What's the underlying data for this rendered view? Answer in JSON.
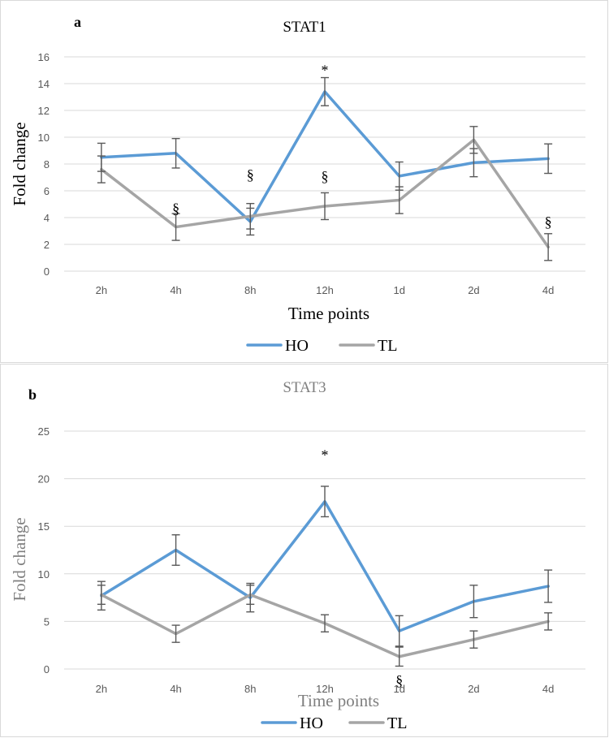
{
  "chart_data": [
    {
      "type": "line",
      "panel": "a",
      "title": "STAT1",
      "xlabel": "Time points",
      "ylabel": "Fold change",
      "categories": [
        "2h",
        "4h",
        "8h",
        "12h",
        "1d",
        "2d",
        "4d"
      ],
      "ylim": [
        0,
        16
      ],
      "yticks": [
        0,
        2,
        4,
        6,
        8,
        10,
        12,
        14,
        16
      ],
      "grid": true,
      "legend_position": "bottom",
      "series": [
        {
          "name": "HO",
          "color": "#5b9bd5",
          "values": [
            8.5,
            8.8,
            3.7,
            13.4,
            7.1,
            8.1,
            8.4
          ],
          "errors": [
            1.05,
            1.1,
            1.0,
            1.05,
            1.05,
            1.05,
            1.1
          ]
        },
        {
          "name": "TL",
          "color": "#a5a5a5",
          "values": [
            7.6,
            3.3,
            4.1,
            4.85,
            5.3,
            9.8,
            1.8
          ],
          "errors": [
            1.0,
            1.0,
            0.95,
            1.0,
            1.0,
            1.0,
            1.0
          ]
        }
      ],
      "annotations": [
        {
          "text": "*",
          "category": "12h",
          "y": 15.0
        },
        {
          "text": "§",
          "category": "4h",
          "y": 4.7
        },
        {
          "text": "§",
          "category": "8h",
          "y": 7.2
        },
        {
          "text": "§",
          "category": "12h",
          "y": 7.1
        },
        {
          "text": "§",
          "category": "4d",
          "y": 3.7
        }
      ]
    },
    {
      "type": "line",
      "panel": "b",
      "title": "STAT3",
      "xlabel": "Time points",
      "ylabel": "Fold change",
      "categories": [
        "2h",
        "4h",
        "8h",
        "12h",
        "1d",
        "2d",
        "4d"
      ],
      "ylim": [
        0,
        25
      ],
      "yticks": [
        0,
        5,
        10,
        15,
        20,
        25
      ],
      "grid": true,
      "legend_position": "bottom",
      "series": [
        {
          "name": "HO",
          "color": "#5b9bd5",
          "values": [
            7.7,
            12.5,
            7.5,
            17.6,
            4.0,
            7.1,
            8.7
          ],
          "errors": [
            1.5,
            1.6,
            1.5,
            1.6,
            1.6,
            1.7,
            1.7
          ]
        },
        {
          "name": "TL",
          "color": "#a5a5a5",
          "values": [
            7.8,
            3.7,
            7.8,
            4.8,
            1.3,
            3.1,
            5.0
          ],
          "errors": [
            1.0,
            0.9,
            1.0,
            0.9,
            1.0,
            0.9,
            0.9
          ]
        }
      ],
      "annotations": [
        {
          "text": "*",
          "category": "12h",
          "y": 22.5
        },
        {
          "text": "§",
          "category": "1d",
          "y": -1.2
        }
      ]
    }
  ],
  "panels": {
    "a": {
      "letter": "a"
    },
    "b": {
      "letter": "b"
    }
  }
}
